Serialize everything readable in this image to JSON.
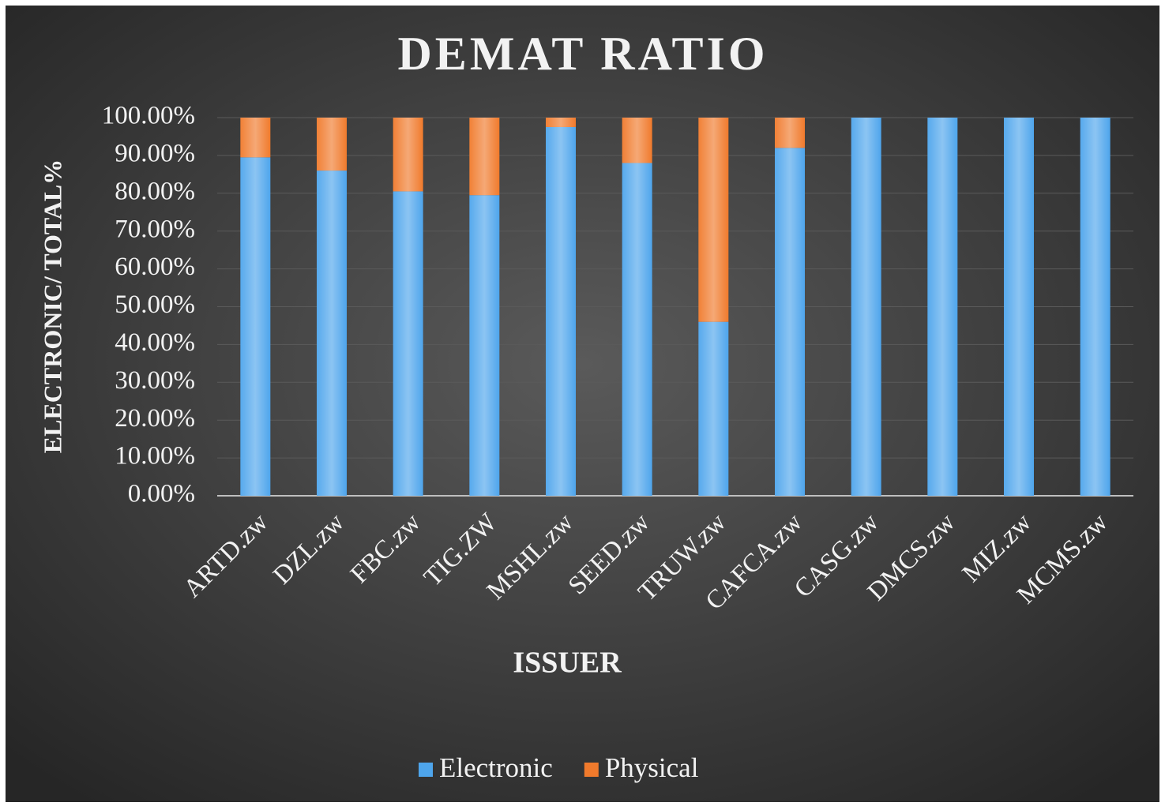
{
  "chart_data": {
    "type": "bar",
    "stacked": true,
    "title": "DEMAT RATIO",
    "x_label": "ISSUER",
    "y_label": "ELECTRONIC/ TOTAL%",
    "categories": [
      "ARTD.zw",
      "DZL.zw",
      "FBC.zw",
      "TIG.ZW",
      "MSHL.zw",
      "SEED.zw",
      "TRUW.zw",
      "CAFCA.zw",
      "CASG.zw",
      "DMCS.zw",
      "MIZ.zw",
      "MCMS.zw"
    ],
    "series": [
      {
        "name": "Electronic",
        "color": "#4ea5ec",
        "values": [
          89.5,
          86,
          80.5,
          79.5,
          97.5,
          88,
          46,
          92,
          100,
          100,
          100,
          100
        ]
      },
      {
        "name": "Physical",
        "color": "#f07a2c",
        "values": [
          10.5,
          14,
          19.5,
          20.5,
          2.5,
          12,
          54,
          8,
          0,
          0,
          0,
          0
        ]
      }
    ],
    "ylim": [
      0,
      100
    ],
    "yticks": [
      {
        "value": 0,
        "label": "0.00%"
      },
      {
        "value": 10,
        "label": "10.00%"
      },
      {
        "value": 20,
        "label": "20.00%"
      },
      {
        "value": 30,
        "label": "30.00%"
      },
      {
        "value": 40,
        "label": "40.00%"
      },
      {
        "value": 50,
        "label": "50.00%"
      },
      {
        "value": 60,
        "label": "60.00%"
      },
      {
        "value": 70,
        "label": "70.00%"
      },
      {
        "value": 80,
        "label": "80.00%"
      },
      {
        "value": 90,
        "label": "90.00%"
      },
      {
        "value": 100,
        "label": "100.00%"
      }
    ],
    "grid": true,
    "legend": "bottom"
  }
}
